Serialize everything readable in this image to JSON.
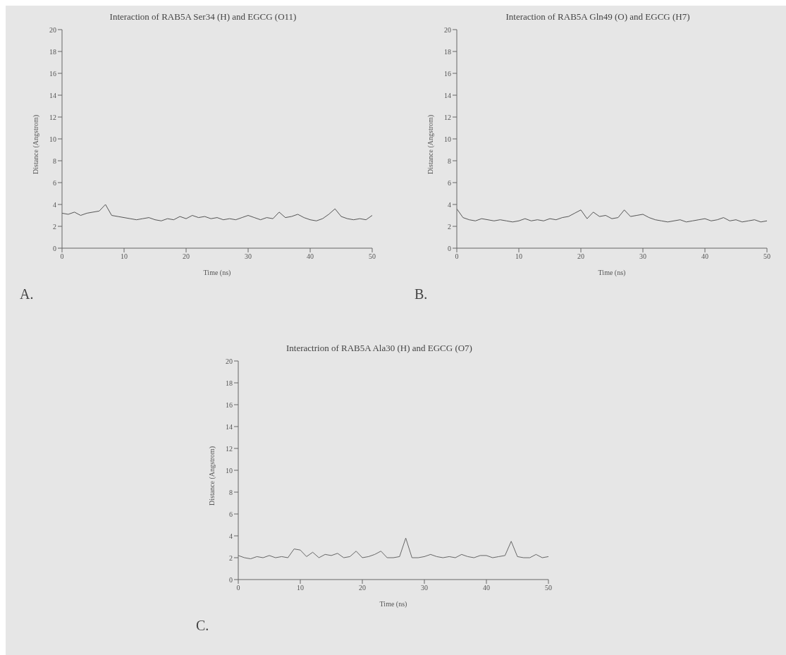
{
  "chart_data": [
    {
      "type": "line",
      "title": "Interaction of RAB5A Ser34 (H) and EGCG (O11)",
      "xlabel": "Time (ns)",
      "ylabel": "Distance (Angstrom)",
      "annotations": [
        "A."
      ],
      "x": [
        0,
        1,
        2,
        3,
        4,
        5,
        6,
        7,
        8,
        9,
        10,
        11,
        12,
        13,
        14,
        15,
        16,
        17,
        18,
        19,
        20,
        21,
        22,
        23,
        24,
        25,
        26,
        27,
        28,
        29,
        30,
        31,
        32,
        33,
        34,
        35,
        36,
        37,
        38,
        39,
        40,
        41,
        42,
        43,
        44,
        45,
        46,
        47,
        48,
        49,
        50
      ],
      "series": [
        {
          "color": "#555555",
          "values": [
            3.2,
            3.1,
            3.3,
            3.0,
            3.2,
            3.3,
            3.4,
            4.0,
            3.0,
            2.9,
            2.8,
            2.7,
            2.6,
            2.7,
            2.8,
            2.6,
            2.5,
            2.7,
            2.6,
            2.9,
            2.7,
            3.0,
            2.8,
            2.9,
            2.7,
            2.8,
            2.6,
            2.7,
            2.6,
            2.8,
            3.0,
            2.8,
            2.6,
            2.8,
            2.7,
            3.3,
            2.8,
            2.9,
            3.1,
            2.8,
            2.6,
            2.5,
            2.7,
            3.1,
            3.6,
            2.9,
            2.7,
            2.6,
            2.7,
            2.6,
            3.0
          ]
        }
      ],
      "xlim": [
        0,
        50
      ],
      "xticks": [
        0,
        10,
        20,
        30,
        40,
        50
      ],
      "ylim": [
        0,
        20
      ],
      "yticks": [
        0,
        2,
        4,
        6,
        8,
        10,
        12,
        14,
        16,
        18,
        20
      ],
      "grid": false,
      "legend": false,
      "marker": "none",
      "line_style": "solid"
    },
    {
      "type": "line",
      "title": "Interaction of RAB5A Gln49 (O) and EGCG (H7)",
      "xlabel": "Time (ns)",
      "ylabel": "Distance (Angstrom)",
      "annotations": [
        "B."
      ],
      "x": [
        0,
        1,
        2,
        3,
        4,
        5,
        6,
        7,
        8,
        9,
        10,
        11,
        12,
        13,
        14,
        15,
        16,
        17,
        18,
        19,
        20,
        21,
        22,
        23,
        24,
        25,
        26,
        27,
        28,
        29,
        30,
        31,
        32,
        33,
        34,
        35,
        36,
        37,
        38,
        39,
        40,
        41,
        42,
        43,
        44,
        45,
        46,
        47,
        48,
        49,
        50
      ],
      "series": [
        {
          "color": "#555555",
          "values": [
            3.6,
            2.8,
            2.6,
            2.5,
            2.7,
            2.6,
            2.5,
            2.6,
            2.5,
            2.4,
            2.5,
            2.7,
            2.5,
            2.6,
            2.5,
            2.7,
            2.6,
            2.8,
            2.9,
            3.2,
            3.5,
            2.7,
            3.3,
            2.9,
            3.0,
            2.7,
            2.8,
            3.5,
            2.9,
            3.0,
            3.1,
            2.8,
            2.6,
            2.5,
            2.4,
            2.5,
            2.6,
            2.4,
            2.5,
            2.6,
            2.7,
            2.5,
            2.6,
            2.8,
            2.5,
            2.6,
            2.4,
            2.5,
            2.6,
            2.4,
            2.5
          ]
        }
      ],
      "xlim": [
        0,
        50
      ],
      "xticks": [
        0,
        10,
        20,
        30,
        40,
        50
      ],
      "ylim": [
        0,
        20
      ],
      "yticks": [
        0,
        2,
        4,
        6,
        8,
        10,
        12,
        14,
        16,
        18,
        20
      ],
      "grid": false,
      "legend": false,
      "marker": "none",
      "line_style": "solid"
    },
    {
      "type": "line",
      "title": "Interactrion of RAB5A  Ala30 (H) and EGCG (O7)",
      "xlabel": "Time (ns)",
      "ylabel": "Distance (Angstrom)",
      "annotations": [
        "C."
      ],
      "x": [
        0,
        1,
        2,
        3,
        4,
        5,
        6,
        7,
        8,
        9,
        10,
        11,
        12,
        13,
        14,
        15,
        16,
        17,
        18,
        19,
        20,
        21,
        22,
        23,
        24,
        25,
        26,
        27,
        28,
        29,
        30,
        31,
        32,
        33,
        34,
        35,
        36,
        37,
        38,
        39,
        40,
        41,
        42,
        43,
        44,
        45,
        46,
        47,
        48,
        49,
        50
      ],
      "series": [
        {
          "color": "#666666",
          "values": [
            2.2,
            2.0,
            1.9,
            2.1,
            2.0,
            2.2,
            2.0,
            2.1,
            2.0,
            2.8,
            2.7,
            2.1,
            2.5,
            2.0,
            2.3,
            2.2,
            2.4,
            2.0,
            2.1,
            2.6,
            2.0,
            2.1,
            2.3,
            2.6,
            2.0,
            2.0,
            2.1,
            3.8,
            2.0,
            2.0,
            2.1,
            2.3,
            2.1,
            2.0,
            2.1,
            2.0,
            2.3,
            2.1,
            2.0,
            2.2,
            2.2,
            2.0,
            2.1,
            2.2,
            3.5,
            2.1,
            2.0,
            2.0,
            2.3,
            2.0,
            2.1
          ]
        }
      ],
      "xlim": [
        0,
        50
      ],
      "xticks": [
        0,
        10,
        20,
        30,
        40,
        50
      ],
      "ylim": [
        0,
        20
      ],
      "yticks": [
        0,
        2,
        4,
        6,
        8,
        10,
        12,
        14,
        16,
        18,
        20
      ],
      "grid": false,
      "legend": false,
      "marker": "none",
      "line_style": "solid"
    }
  ]
}
